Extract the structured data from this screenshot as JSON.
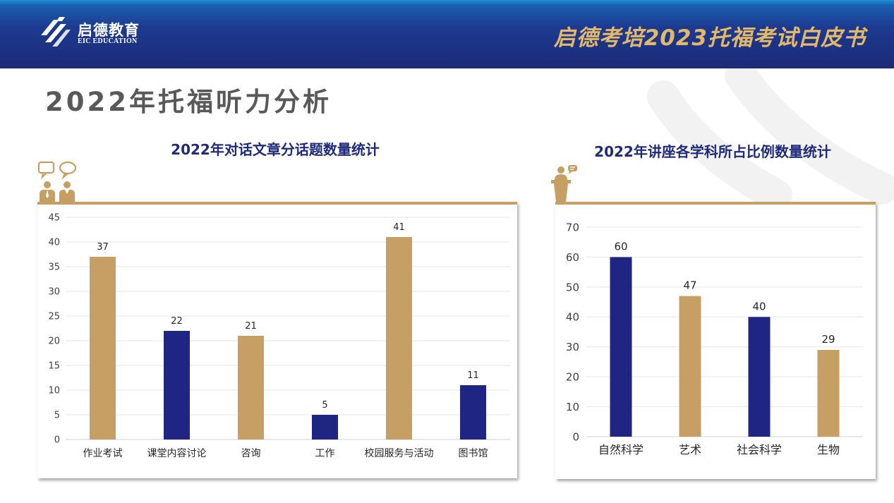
{
  "header": {
    "brand_cn": "启德教育",
    "brand_en": "EIC EDUCATION",
    "title": "启德考培2023托福考试白皮书"
  },
  "page_title": "2022年托福听力分析",
  "colors": {
    "gold": "#c59f63",
    "navy": "#1f2583"
  },
  "icons": [
    "eic-logo-icon",
    "conversation-people-icon",
    "lecturer-podium-icon"
  ],
  "chart_data": [
    {
      "type": "bar",
      "title": "2022年对话文章分话题数量统计",
      "categories": [
        "作业考试",
        "课堂内容讨论",
        "咨询",
        "工作",
        "校园服务与活动",
        "图书馆"
      ],
      "values": [
        37,
        22,
        21,
        5,
        41,
        11
      ],
      "bar_colors": [
        "#c59f63",
        "#1f2583",
        "#c59f63",
        "#1f2583",
        "#c59f63",
        "#1f2583"
      ],
      "ylim": [
        0,
        45
      ],
      "yticks": [
        0,
        5,
        10,
        15,
        20,
        25,
        30,
        35,
        40,
        45
      ],
      "grid": true
    },
    {
      "type": "bar",
      "title": "2022年讲座各学科所占比例数量统计",
      "categories": [
        "自然科学",
        "艺术",
        "社会科学",
        "生物"
      ],
      "values": [
        60,
        47,
        40,
        29
      ],
      "bar_colors": [
        "#1f2583",
        "#c59f63",
        "#1f2583",
        "#c59f63"
      ],
      "ylim": [
        0,
        70
      ],
      "yticks": [
        0,
        10,
        20,
        30,
        40,
        50,
        60,
        70
      ],
      "grid": true
    }
  ]
}
